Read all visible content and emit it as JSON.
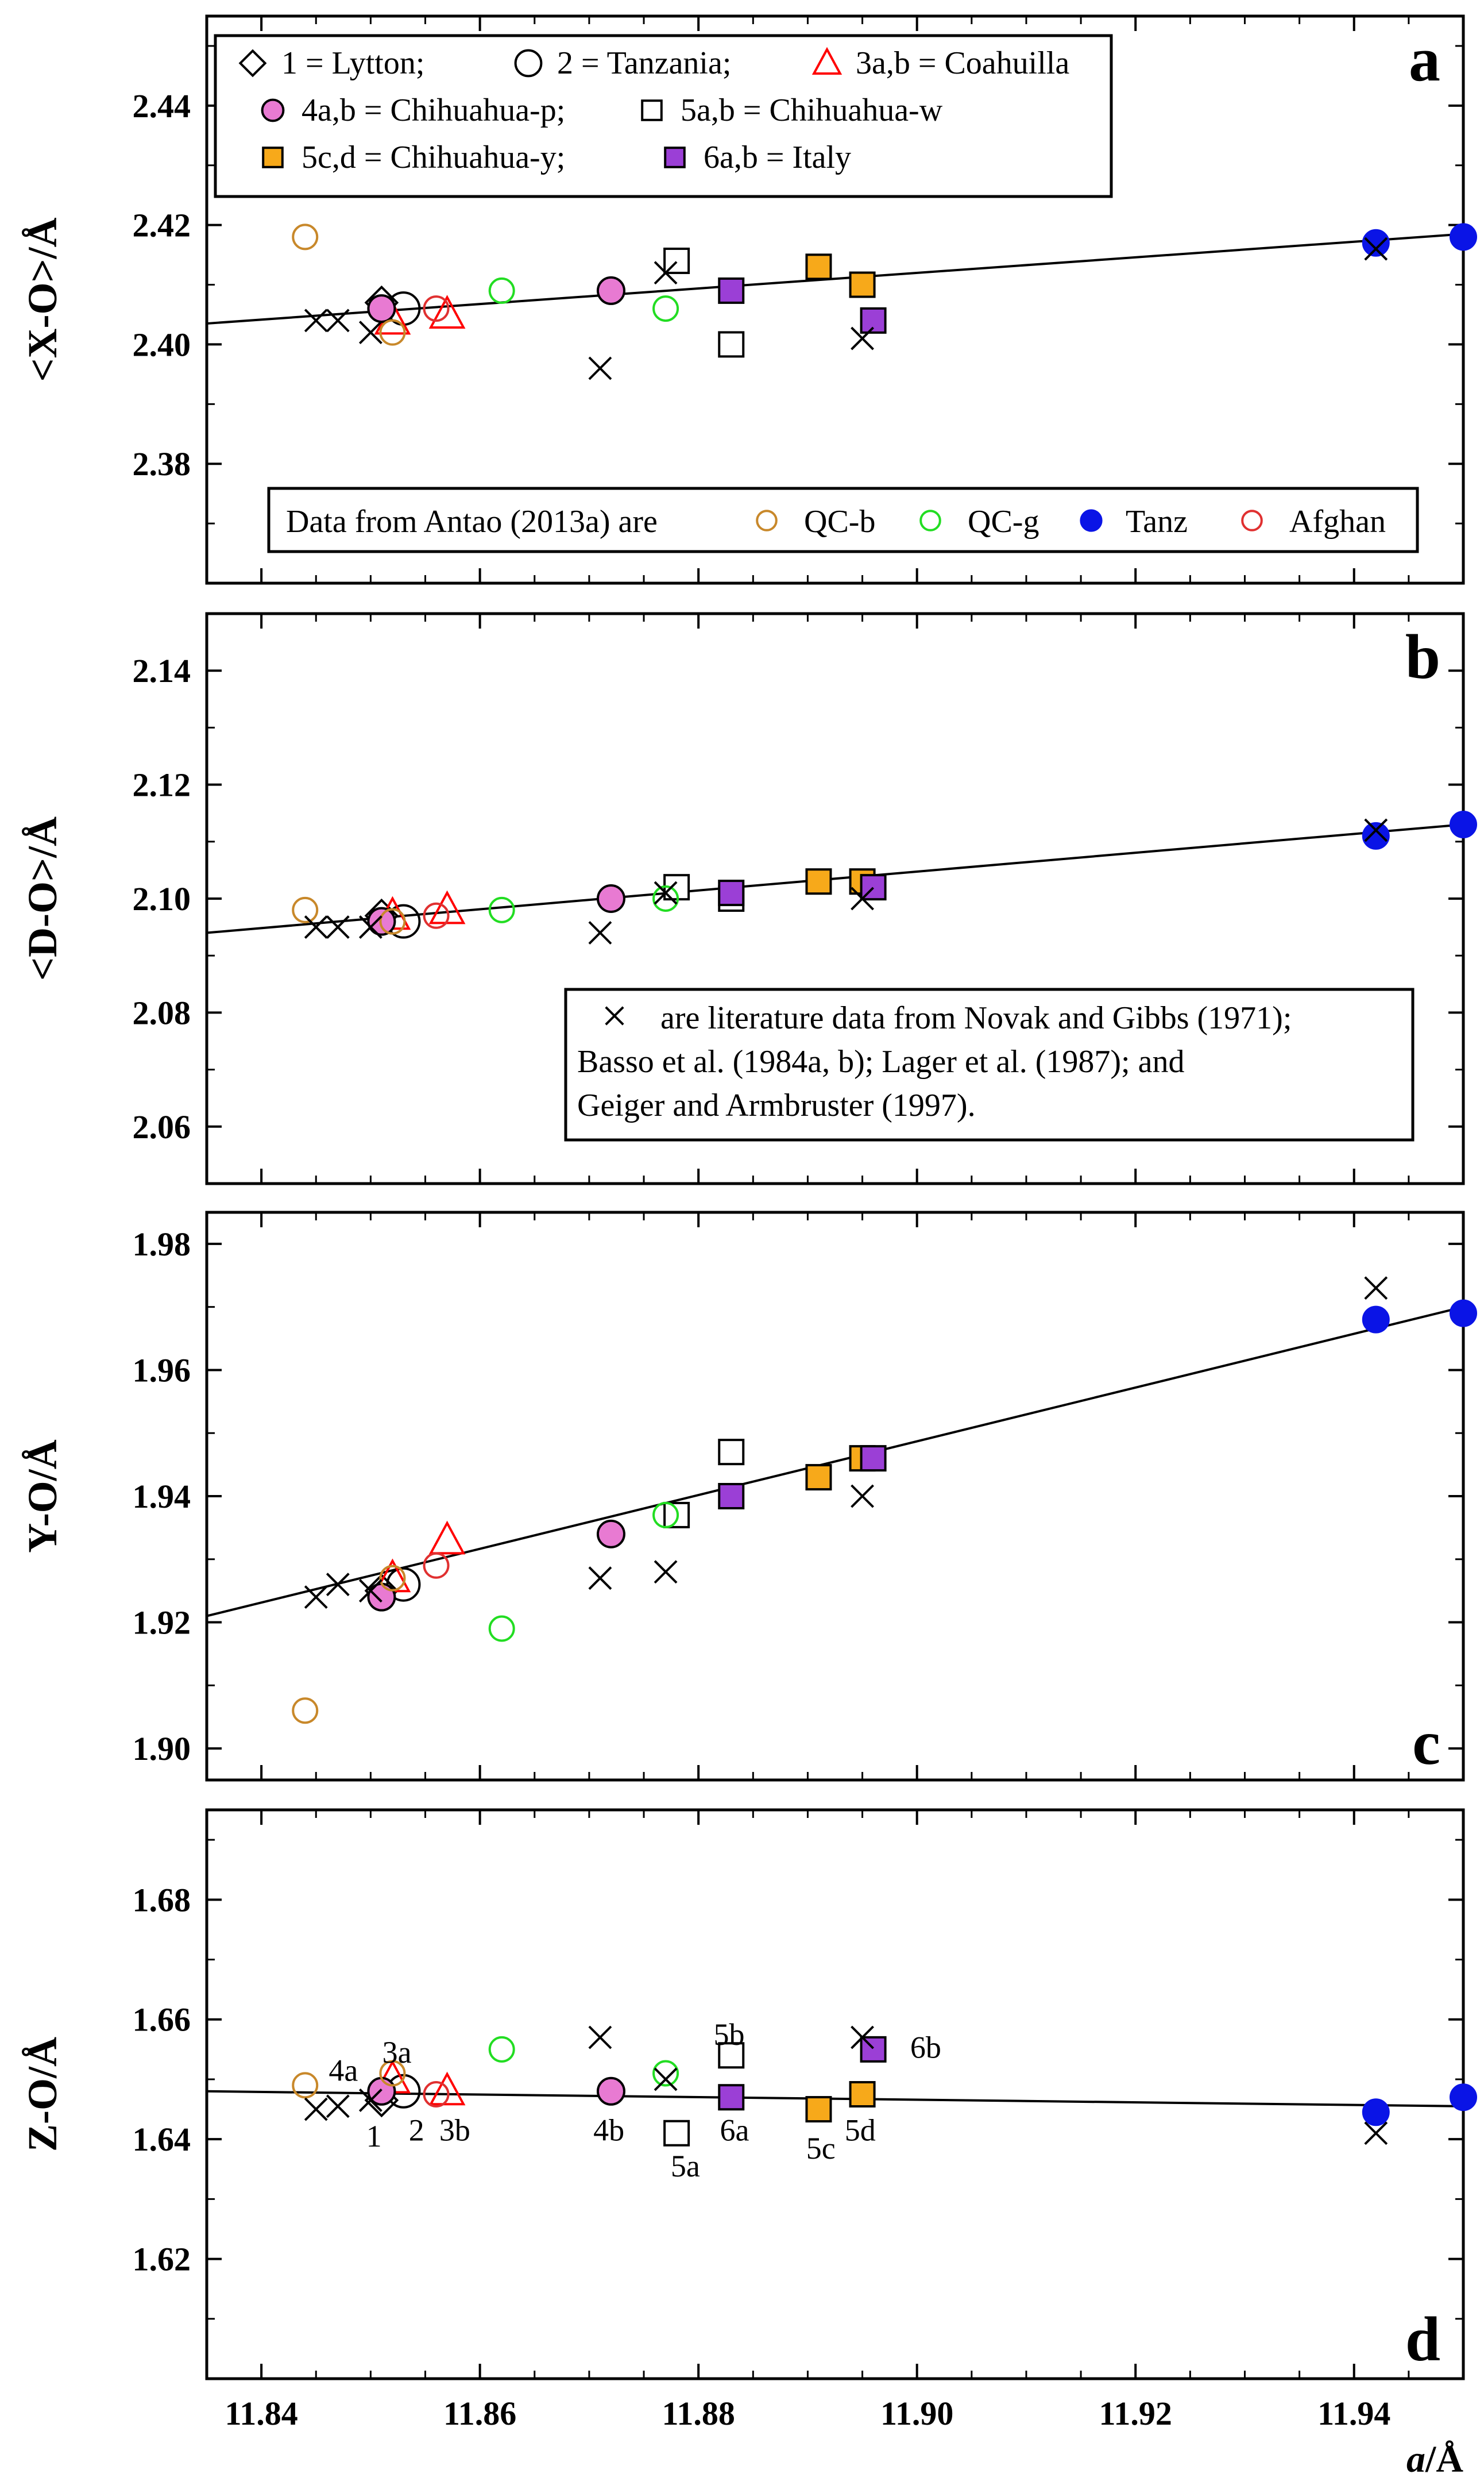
{
  "figure": {
    "x_axis_label_italic": "a",
    "x_axis_label_rest": "/Å",
    "xlim": [
      11.835,
      11.95
    ],
    "x_ticks": [
      "11.84",
      "11.86",
      "11.88",
      "11.90",
      "11.92",
      "11.94"
    ],
    "x_tick_values": [
      11.84,
      11.86,
      11.88,
      11.9,
      11.92,
      11.94
    ]
  },
  "colors": {
    "black": "#000000",
    "red": "#ff0000",
    "pink": "#e87ad2",
    "orange": "#f7a91a",
    "purple": "#9b3fd6",
    "blue": "#0a14e6",
    "qcb": "#c8882a",
    "qcg": "#22dd22",
    "afghan": "#e03030"
  },
  "chart_data": [
    {
      "type": "scatter",
      "panel": "a",
      "ylabel": "<X-O>/Å",
      "ylim": [
        2.36,
        2.455
      ],
      "y_ticks": [
        "2.38",
        "2.40",
        "2.42",
        "2.44"
      ],
      "y_tick_values": [
        2.38,
        2.4,
        2.42,
        2.44
      ],
      "fit_line": [
        [
          11.835,
          2.4035
        ],
        [
          11.95,
          2.4185
        ]
      ],
      "series": [
        {
          "name": "1 = Lytton;",
          "marker": "diamond",
          "points": [
            [
              11.851,
              2.407
            ]
          ]
        },
        {
          "name": "2 = Tanzania;",
          "marker": "circle-open",
          "points": [
            [
              11.853,
              2.406
            ]
          ]
        },
        {
          "name": "3a,b = Coahuilla",
          "marker": "triangle-red",
          "points": [
            [
              11.852,
              2.404
            ],
            [
              11.857,
              2.405
            ]
          ]
        },
        {
          "name": "4a,b = Chihuahua-p;",
          "marker": "circle-pink",
          "points": [
            [
              11.851,
              2.406
            ],
            [
              11.872,
              2.409
            ]
          ]
        },
        {
          "name": "5a,b = Chihuahua-w",
          "marker": "square-open",
          "points": [
            [
              11.878,
              2.414
            ],
            [
              11.883,
              2.4
            ]
          ]
        },
        {
          "name": "5c,d = Chihuahua-y;",
          "marker": "square-orange",
          "points": [
            [
              11.891,
              2.413
            ],
            [
              11.895,
              2.41
            ]
          ]
        },
        {
          "name": "6a,b = Italy",
          "marker": "square-purple",
          "points": [
            [
              11.883,
              2.409
            ],
            [
              11.896,
              2.404
            ]
          ]
        },
        {
          "name": "QC-b",
          "marker": "circle-qcb",
          "points": [
            [
              11.844,
              2.418
            ],
            [
              11.852,
              2.402
            ]
          ]
        },
        {
          "name": "QC-g",
          "marker": "circle-qcg",
          "points": [
            [
              11.862,
              2.409
            ],
            [
              11.877,
              2.406
            ]
          ]
        },
        {
          "name": "Tanz",
          "marker": "circle-blue",
          "points": [
            [
              11.942,
              2.417
            ],
            [
              11.95,
              2.418
            ]
          ]
        },
        {
          "name": "Afghan",
          "marker": "circle-afghan",
          "points": [
            [
              11.856,
              2.406
            ]
          ]
        },
        {
          "name": "literature",
          "marker": "cross",
          "points": [
            [
              11.845,
              2.404
            ],
            [
              11.847,
              2.404
            ],
            [
              11.85,
              2.402
            ],
            [
              11.871,
              2.396
            ],
            [
              11.877,
              2.412
            ],
            [
              11.895,
              2.401
            ],
            [
              11.942,
              2.416
            ]
          ]
        }
      ],
      "legend_top": [
        "1 = Lytton;",
        "2 = Tanzania;",
        "3a,b = Coahuilla",
        "4a,b = Chihuahua-p;",
        "5a,b = Chihuahua-w",
        "5c,d = Chihuahua-y;",
        "6a,b = Italy"
      ],
      "legend_bottom": {
        "prefix": "Data from Antao (2013a) are",
        "items": [
          "QC-b",
          "QC-g",
          "Tanz",
          "Afghan"
        ]
      },
      "letter": "a"
    },
    {
      "type": "scatter",
      "panel": "b",
      "ylabel": "<D-O>/Å",
      "ylim": [
        2.05,
        2.15
      ],
      "y_ticks": [
        "2.06",
        "2.08",
        "2.10",
        "2.12",
        "2.14"
      ],
      "y_tick_values": [
        2.06,
        2.08,
        2.1,
        2.12,
        2.14
      ],
      "fit_line": [
        [
          11.835,
          2.094
        ],
        [
          11.95,
          2.113
        ]
      ],
      "series": [
        {
          "name": "1",
          "marker": "diamond",
          "points": [
            [
              11.851,
              2.097
            ]
          ]
        },
        {
          "name": "2",
          "marker": "circle-open",
          "points": [
            [
              11.853,
              2.096
            ]
          ]
        },
        {
          "name": "3",
          "marker": "triangle-red",
          "points": [
            [
              11.852,
              2.097
            ],
            [
              11.857,
              2.098
            ]
          ]
        },
        {
          "name": "4",
          "marker": "circle-pink",
          "points": [
            [
              11.851,
              2.096
            ],
            [
              11.872,
              2.1
            ]
          ]
        },
        {
          "name": "5ab",
          "marker": "square-open",
          "points": [
            [
              11.878,
              2.102
            ],
            [
              11.883,
              2.1
            ]
          ]
        },
        {
          "name": "5cd",
          "marker": "square-orange",
          "points": [
            [
              11.891,
              2.103
            ],
            [
              11.895,
              2.103
            ]
          ]
        },
        {
          "name": "6",
          "marker": "square-purple",
          "points": [
            [
              11.883,
              2.101
            ],
            [
              11.896,
              2.102
            ]
          ]
        },
        {
          "name": "QC-b",
          "marker": "circle-qcb",
          "points": [
            [
              11.844,
              2.098
            ],
            [
              11.852,
              2.096
            ]
          ]
        },
        {
          "name": "QC-g",
          "marker": "circle-qcg",
          "points": [
            [
              11.862,
              2.098
            ],
            [
              11.877,
              2.1
            ]
          ]
        },
        {
          "name": "Tanz",
          "marker": "circle-blue",
          "points": [
            [
              11.942,
              2.111
            ],
            [
              11.95,
              2.113
            ]
          ]
        },
        {
          "name": "Afghan",
          "marker": "circle-afghan",
          "points": [
            [
              11.856,
              2.097
            ]
          ]
        },
        {
          "name": "literature",
          "marker": "cross",
          "points": [
            [
              11.845,
              2.095
            ],
            [
              11.847,
              2.095
            ],
            [
              11.85,
              2.095
            ],
            [
              11.871,
              2.094
            ],
            [
              11.877,
              2.101
            ],
            [
              11.895,
              2.1
            ],
            [
              11.942,
              2.112
            ]
          ]
        }
      ],
      "legend_note": [
        "are literature data from Novak and Gibbs (1971);",
        "Basso et al. (1984a, b); Lager et al. (1987); and",
        "Geiger and Armbruster (1997)."
      ],
      "letter": "b"
    },
    {
      "type": "scatter",
      "panel": "c",
      "ylabel": "Y-O/Å",
      "ylim": [
        1.895,
        1.985
      ],
      "y_ticks": [
        "1.90",
        "1.92",
        "1.94",
        "1.96",
        "1.98"
      ],
      "y_tick_values": [
        1.9,
        1.92,
        1.94,
        1.96,
        1.98
      ],
      "fit_line": [
        [
          11.835,
          1.921
        ],
        [
          11.95,
          1.97
        ]
      ],
      "series": [
        {
          "name": "1",
          "marker": "diamond",
          "points": [
            [
              11.851,
              1.925
            ]
          ]
        },
        {
          "name": "2",
          "marker": "circle-open",
          "points": [
            [
              11.853,
              1.926
            ]
          ]
        },
        {
          "name": "3",
          "marker": "triangle-red",
          "points": [
            [
              11.852,
              1.927
            ],
            [
              11.857,
              1.933
            ]
          ]
        },
        {
          "name": "4",
          "marker": "circle-pink",
          "points": [
            [
              11.851,
              1.924
            ],
            [
              11.872,
              1.934
            ]
          ]
        },
        {
          "name": "5ab",
          "marker": "square-open",
          "points": [
            [
              11.878,
              1.937
            ],
            [
              11.883,
              1.947
            ]
          ]
        },
        {
          "name": "5cd",
          "marker": "square-orange",
          "points": [
            [
              11.891,
              1.943
            ],
            [
              11.895,
              1.946
            ]
          ]
        },
        {
          "name": "6",
          "marker": "square-purple",
          "points": [
            [
              11.883,
              1.94
            ],
            [
              11.896,
              1.946
            ]
          ]
        },
        {
          "name": "QC-b",
          "marker": "circle-qcb",
          "points": [
            [
              11.844,
              1.906
            ],
            [
              11.852,
              1.927
            ]
          ]
        },
        {
          "name": "QC-g",
          "marker": "circle-qcg",
          "points": [
            [
              11.862,
              1.919
            ],
            [
              11.877,
              1.937
            ]
          ]
        },
        {
          "name": "Tanz",
          "marker": "circle-blue",
          "points": [
            [
              11.942,
              1.968
            ],
            [
              11.95,
              1.969
            ]
          ]
        },
        {
          "name": "Afghan",
          "marker": "circle-afghan",
          "points": [
            [
              11.856,
              1.929
            ]
          ]
        },
        {
          "name": "literature",
          "marker": "cross",
          "points": [
            [
              11.845,
              1.924
            ],
            [
              11.847,
              1.926
            ],
            [
              11.85,
              1.925
            ],
            [
              11.871,
              1.927
            ],
            [
              11.877,
              1.928
            ],
            [
              11.895,
              1.94
            ],
            [
              11.942,
              1.973
            ]
          ]
        }
      ],
      "letter": "c"
    },
    {
      "type": "scatter",
      "panel": "d",
      "ylabel": "Z-O/Å",
      "ylim": [
        1.6,
        1.695
      ],
      "y_ticks": [
        "1.62",
        "1.64",
        "1.66",
        "1.68"
      ],
      "y_tick_values": [
        1.62,
        1.64,
        1.66,
        1.68
      ],
      "fit_line": [
        [
          11.835,
          1.648
        ],
        [
          11.95,
          1.6455
        ]
      ],
      "series": [
        {
          "name": "1",
          "marker": "diamond",
          "points": [
            [
              11.851,
              1.6465
            ]
          ]
        },
        {
          "name": "2",
          "marker": "circle-open",
          "points": [
            [
              11.853,
              1.648
            ]
          ]
        },
        {
          "name": "3",
          "marker": "triangle-red",
          "points": [
            [
              11.852,
              1.65
            ],
            [
              11.857,
              1.648
            ]
          ]
        },
        {
          "name": "4",
          "marker": "circle-pink",
          "points": [
            [
              11.851,
              1.648
            ],
            [
              11.872,
              1.648
            ]
          ]
        },
        {
          "name": "5ab",
          "marker": "square-open",
          "points": [
            [
              11.883,
              1.654
            ],
            [
              11.878,
              1.641
            ]
          ]
        },
        {
          "name": "5cd",
          "marker": "square-orange",
          "points": [
            [
              11.891,
              1.645
            ],
            [
              11.895,
              1.6475
            ]
          ]
        },
        {
          "name": "6",
          "marker": "square-purple",
          "points": [
            [
              11.883,
              1.647
            ],
            [
              11.896,
              1.655
            ]
          ]
        },
        {
          "name": "QC-b",
          "marker": "circle-qcb",
          "points": [
            [
              11.844,
              1.649
            ],
            [
              11.852,
              1.651
            ]
          ]
        },
        {
          "name": "QC-g",
          "marker": "circle-qcg",
          "points": [
            [
              11.862,
              1.655
            ],
            [
              11.877,
              1.651
            ]
          ]
        },
        {
          "name": "Tanz",
          "marker": "circle-blue",
          "points": [
            [
              11.942,
              1.6445
            ],
            [
              11.95,
              1.647
            ]
          ]
        },
        {
          "name": "Afghan",
          "marker": "circle-afghan",
          "points": [
            [
              11.856,
              1.6475
            ]
          ]
        },
        {
          "name": "literature",
          "marker": "cross",
          "points": [
            [
              11.845,
              1.645
            ],
            [
              11.847,
              1.6455
            ],
            [
              11.85,
              1.6465
            ],
            [
              11.871,
              1.657
            ],
            [
              11.877,
              1.65
            ],
            [
              11.895,
              1.657
            ],
            [
              11.942,
              1.641
            ]
          ]
        }
      ],
      "annotations": [
        {
          "text": "4a",
          "x": 11.8475,
          "y": 1.6515
        },
        {
          "text": "3a",
          "x": 11.8524,
          "y": 1.6545
        },
        {
          "text": "1",
          "x": 11.8503,
          "y": 1.6405
        },
        {
          "text": "2",
          "x": 11.8542,
          "y": 1.6415
        },
        {
          "text": "3b",
          "x": 11.8577,
          "y": 1.6415
        },
        {
          "text": "4b",
          "x": 11.8718,
          "y": 1.6415
        },
        {
          "text": "5b",
          "x": 11.8828,
          "y": 1.6575
        },
        {
          "text": "5a",
          "x": 11.8788,
          "y": 1.6355
        },
        {
          "text": "6a",
          "x": 11.8833,
          "y": 1.6415
        },
        {
          "text": "5c",
          "x": 11.8912,
          "y": 1.6385
        },
        {
          "text": "5d",
          "x": 11.8948,
          "y": 1.6415
        },
        {
          "text": "6b",
          "x": 11.9008,
          "y": 1.6553
        }
      ],
      "letter": "d"
    }
  ]
}
